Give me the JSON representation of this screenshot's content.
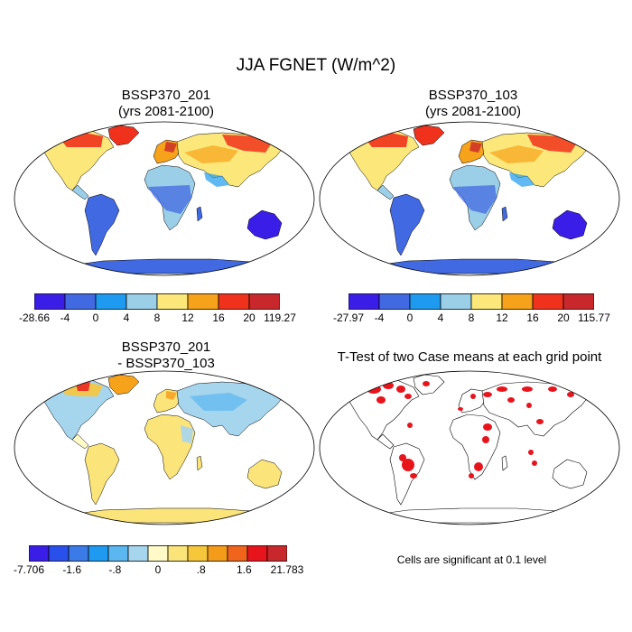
{
  "figure": {
    "title": "JJA FGNET (W/m^2)",
    "panels": [
      {
        "id": "p1",
        "title_line1": "BSSP370_201",
        "title_line2": "(yrs 2081-2100)",
        "colorbar": {
          "labels": [
            "-28.66",
            "-4",
            "0",
            "4",
            "8",
            "12",
            "16",
            "20",
            "119.27"
          ],
          "colors": [
            "#3a1de6",
            "#4169e1",
            "#1e9bf0",
            "#9bcfe8",
            "#fce87a",
            "#f7a21b",
            "#f0321c",
            "#c8282c"
          ]
        }
      },
      {
        "id": "p2",
        "title_line1": "BSSP370_103",
        "title_line2": "(yrs 2081-2100)",
        "colorbar": {
          "labels": [
            "-27.97",
            "-4",
            "0",
            "4",
            "8",
            "12",
            "16",
            "20",
            "115.77"
          ],
          "colors": [
            "#3a1de6",
            "#4169e1",
            "#1e9bf0",
            "#9bcfe8",
            "#fce87a",
            "#f7a21b",
            "#f0321c",
            "#c8282c"
          ]
        }
      },
      {
        "id": "p3",
        "title_line1": "BSSP370_201",
        "title_line2": "- BSSP370_103",
        "colorbar": {
          "labels": [
            "-7.706",
            "-1.6",
            "-.8",
            "0",
            ".8",
            "1.6",
            "21.783"
          ],
          "colors": [
            "#3a1de6",
            "#2a50ec",
            "#3b7be8",
            "#1e9bf0",
            "#5cb6ef",
            "#a6d5ee",
            "#fffac8",
            "#fbe479",
            "#f7c73b",
            "#f59b1a",
            "#f0641c",
            "#e8141c",
            "#c8282c"
          ]
        }
      },
      {
        "id": "p4",
        "title": "T-Test of two Case means at each grid point",
        "note": "Cells are significant at 0.1 level",
        "colors": {
          "significant": "#e8141c"
        }
      }
    ]
  }
}
